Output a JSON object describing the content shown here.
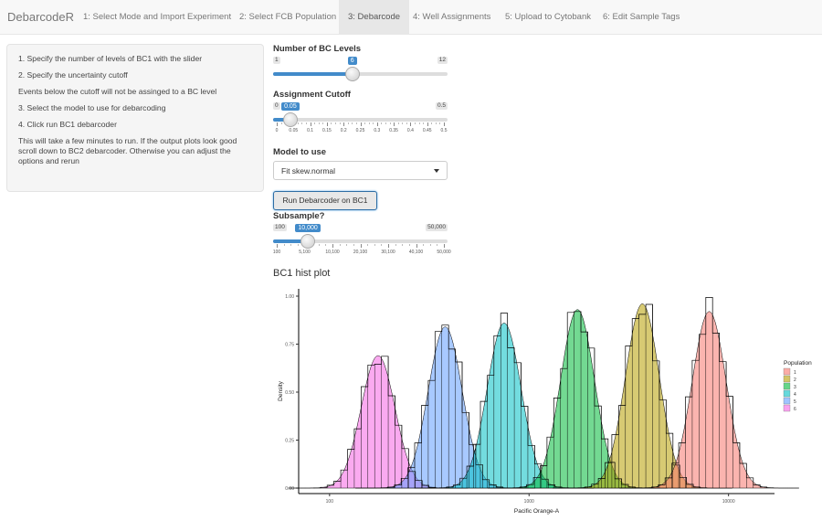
{
  "nav": {
    "brand": "DebarcodeR",
    "tabs": [
      {
        "label": "1: Select Mode and Import Experiment",
        "active": false
      },
      {
        "label": "2: Select FCB Population",
        "active": false
      },
      {
        "label": "3: Debarcode",
        "active": true
      },
      {
        "label": "4: Well Assignments",
        "active": false
      },
      {
        "label": "5: Upload to Cytobank",
        "active": false
      },
      {
        "label": "6: Edit Sample Tags",
        "active": false
      }
    ]
  },
  "instructions": [
    "1. Specify the number of levels of BC1 with the slider",
    "2. Specify the uncertainty cutoff",
    "Events below the cutoff will not be assinged to a BC level",
    "3. Select the model to use for debarcoding",
    "4. Click run BC1 debarcoder",
    "This will take a few minutes to run. If the output plots look good scroll down to BC2 debarcoder. Otherwise you can adjust the options and rerun"
  ],
  "bc_levels": {
    "label": "Number of BC Levels",
    "min": "1",
    "max": "12",
    "value": "6",
    "fraction": 0.4545
  },
  "cutoff": {
    "label": "Assignment Cutoff",
    "min": "0",
    "max": "0.5",
    "value": "0.05",
    "fraction": 0.1,
    "ticks": [
      "0",
      "0.05",
      "0.1",
      "0.15",
      "0.2",
      "0.25",
      "0.3",
      "0.35",
      "0.4",
      "0.45",
      "0.5"
    ]
  },
  "model": {
    "label": "Model to use",
    "value": "Fit skew.normal"
  },
  "run_button": "Run Debarcoder on BC1",
  "subsample": {
    "label": "Subsample?",
    "min": "100",
    "max": "50,000",
    "value": "10,000",
    "fraction": 0.1984,
    "ticks": [
      "100",
      "5,100",
      "10,100",
      "20,100",
      "30,100",
      "40,100",
      "50,000"
    ]
  },
  "plot_title": "BC1 hist plot",
  "chart_data": {
    "type": "area",
    "xlabel": "Pacific Orange-A",
    "ylabel": "Density",
    "x_scale": "log",
    "xlim": [
      70,
      17000
    ],
    "ylim": [
      0,
      1.0
    ],
    "x_ticks": [
      "100",
      "1000",
      "10000"
    ],
    "y_ticks": [
      "0.00",
      "0.25",
      "0.50",
      "0.75",
      "1.00"
    ],
    "legend_title": "Population",
    "legend_position": "right",
    "series": [
      {
        "name": "1",
        "peak_x": 8000,
        "peak_density": 0.92,
        "color": "#F8766D"
      },
      {
        "name": "2",
        "peak_x": 3700,
        "peak_density": 0.96,
        "color": "#B79F00"
      },
      {
        "name": "3",
        "peak_x": 1750,
        "peak_density": 0.93,
        "color": "#00BA38"
      },
      {
        "name": "4",
        "peak_x": 750,
        "peak_density": 0.86,
        "color": "#00BFC4"
      },
      {
        "name": "5",
        "peak_x": 380,
        "peak_density": 0.84,
        "color": "#619CFF"
      },
      {
        "name": "6",
        "peak_x": 175,
        "peak_density": 0.69,
        "color": "#F564E3"
      }
    ]
  }
}
